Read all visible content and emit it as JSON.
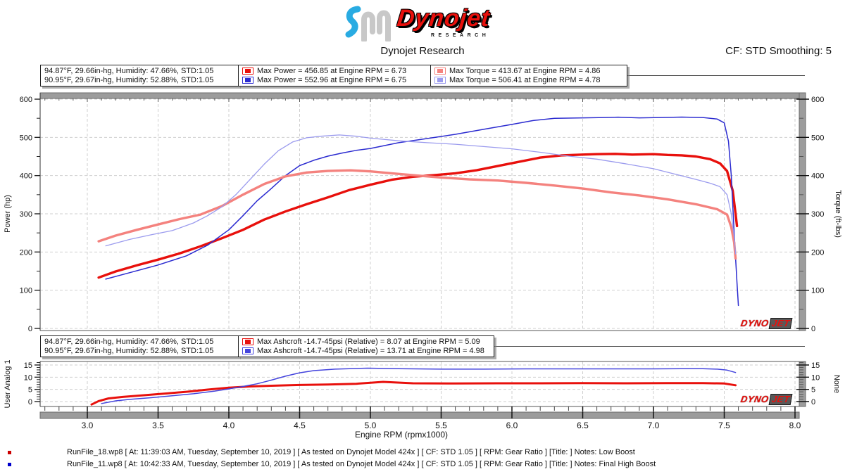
{
  "header": {
    "wordmark": "Dynojet",
    "research_label": "RESEARCH",
    "title": "Dynojet Research",
    "cf_label": "CF: STD Smoothing: 5"
  },
  "conditions": {
    "run1": "94.87°F, 29.66in-hg, Humidity: 47.66%, STD:1.05",
    "run2": "90.95°F, 29.67in-hg, Humidity: 52.88%, STD:1.05"
  },
  "legend_power_torque": {
    "power_run1": "Max Power = 456.85 at Engine RPM = 6.73",
    "power_run2": "Max Power = 552.96 at Engine RPM = 6.75",
    "torque_run1": "Max Torque = 413.67 at Engine RPM = 4.86",
    "torque_run2": "Max Torque = 506.41 at Engine RPM = 4.78"
  },
  "legend_boost": {
    "run1": "Max Ashcroft -14.7-45psi (Relative) = 8.07 at Engine RPM = 5.09",
    "run2": "Max Ashcroft -14.7-45psi (Relative) = 13.71 at Engine RPM = 4.98"
  },
  "watermark": {
    "part1": "DYNO",
    "part2": "JET"
  },
  "colors": {
    "accent": "#e8100c",
    "grid": "#cfcfcf",
    "band": "#9c9c9c",
    "band_edge": "#6b6b6b",
    "axis": "#333333"
  },
  "footer": {
    "runs": [
      {
        "color": "#cc0000",
        "text": "RunFile_18.wp8 [ At: 11:39:03 AM, Tuesday, September 10, 2019 ] [ As tested on Dynojet Model 424x ] [ CF: STD 1.05 ] [ RPM: Gear Ratio ] [Title: ]  Notes: Low Boost"
      },
      {
        "color": "#0000cc",
        "text": "RunFile_11.wp8 [ At: 10:42:33 AM, Tuesday, September 10, 2019 ] [ As tested on Dynojet Model 424x ] [ CF: STD 1.05 ] [ RPM: Gear Ratio ] [Title: ]  Notes: Final High Boost"
      }
    ]
  },
  "chart_data": [
    {
      "type": "line",
      "title": "Power and Torque vs Engine RPM",
      "xlabel": "Engine RPM (rpmx1000)",
      "ylabel_left": "Power (hp)",
      "ylabel_right": "Torque (ft-lbs)",
      "xlim": [
        2.66,
        8.04
      ],
      "ylim": [
        0,
        620
      ],
      "x_ticks": [
        3.0,
        3.5,
        4.0,
        4.5,
        5.0,
        5.5,
        6.0,
        6.5,
        7.0,
        7.5,
        8.0
      ],
      "y_ticks": [
        0,
        100,
        200,
        300,
        400,
        500,
        600
      ],
      "y_minor_step": 50,
      "x_minor_step": 0.1,
      "grid": "dashed",
      "legend_position": "top",
      "series": [
        {
          "name": "Power - RunFile_18 (Low Boost)",
          "unit": "hp",
          "color": "#e8100c",
          "width": 3.4,
          "points": [
            [
              3.08,
              133
            ],
            [
              3.2,
              149
            ],
            [
              3.35,
              165
            ],
            [
              3.5,
              180
            ],
            [
              3.65,
              196
            ],
            [
              3.8,
              215
            ],
            [
              3.95,
              236
            ],
            [
              4.1,
              258
            ],
            [
              4.25,
              285
            ],
            [
              4.4,
              306
            ],
            [
              4.55,
              325
            ],
            [
              4.7,
              343
            ],
            [
              4.85,
              362
            ],
            [
              5.0,
              376
            ],
            [
              5.15,
              389
            ],
            [
              5.3,
              397
            ],
            [
              5.45,
              401
            ],
            [
              5.6,
              406
            ],
            [
              5.75,
              414
            ],
            [
              5.9,
              425
            ],
            [
              6.05,
              436
            ],
            [
              6.2,
              447
            ],
            [
              6.35,
              453
            ],
            [
              6.5,
              455
            ],
            [
              6.6,
              456
            ],
            [
              6.73,
              456.85
            ],
            [
              6.85,
              455
            ],
            [
              7.0,
              456
            ],
            [
              7.1,
              454
            ],
            [
              7.2,
              453
            ],
            [
              7.3,
              450
            ],
            [
              7.4,
              443
            ],
            [
              7.47,
              432
            ],
            [
              7.52,
              412
            ],
            [
              7.56,
              360
            ],
            [
              7.58,
              300
            ],
            [
              7.59,
              268
            ]
          ]
        },
        {
          "name": "Power - RunFile_11 (Final High Boost)",
          "unit": "hp",
          "color": "#2b2bd0",
          "width": 1.5,
          "points": [
            [
              3.13,
              129
            ],
            [
              3.3,
              146
            ],
            [
              3.5,
              166
            ],
            [
              3.7,
              190
            ],
            [
              3.85,
              218
            ],
            [
              4.0,
              258
            ],
            [
              4.1,
              295
            ],
            [
              4.2,
              334
            ],
            [
              4.3,
              366
            ],
            [
              4.4,
              400
            ],
            [
              4.5,
              426
            ],
            [
              4.6,
              440
            ],
            [
              4.7,
              451
            ],
            [
              4.8,
              459
            ],
            [
              4.9,
              466
            ],
            [
              5.0,
              471
            ],
            [
              5.2,
              486
            ],
            [
              5.4,
              497
            ],
            [
              5.6,
              508
            ],
            [
              5.8,
              521
            ],
            [
              6.0,
              534
            ],
            [
              6.15,
              544
            ],
            [
              6.3,
              550
            ],
            [
              6.5,
              551
            ],
            [
              6.65,
              552
            ],
            [
              6.75,
              552.96
            ],
            [
              6.9,
              551
            ],
            [
              7.05,
              552
            ],
            [
              7.2,
              553
            ],
            [
              7.35,
              552
            ],
            [
              7.45,
              548
            ],
            [
              7.5,
              538
            ],
            [
              7.53,
              490
            ],
            [
              7.55,
              400
            ],
            [
              7.57,
              250
            ],
            [
              7.59,
              120
            ],
            [
              7.6,
              60
            ]
          ]
        },
        {
          "name": "Torque - RunFile_18 (Low Boost)",
          "unit": "ft-lbs",
          "color": "#f4827e",
          "width": 3.4,
          "points": [
            [
              3.08,
              228
            ],
            [
              3.2,
              243
            ],
            [
              3.35,
              258
            ],
            [
              3.5,
              272
            ],
            [
              3.65,
              286
            ],
            [
              3.8,
              298
            ],
            [
              3.95,
              320
            ],
            [
              4.1,
              350
            ],
            [
              4.25,
              378
            ],
            [
              4.4,
              398
            ],
            [
              4.55,
              408
            ],
            [
              4.7,
              412
            ],
            [
              4.86,
              413.67
            ],
            [
              5.0,
              411
            ],
            [
              5.15,
              406
            ],
            [
              5.3,
              401
            ],
            [
              5.5,
              395
            ],
            [
              5.7,
              390
            ],
            [
              5.9,
              387
            ],
            [
              6.1,
              381
            ],
            [
              6.3,
              374
            ],
            [
              6.5,
              366
            ],
            [
              6.7,
              356
            ],
            [
              6.9,
              348
            ],
            [
              7.1,
              338
            ],
            [
              7.3,
              325
            ],
            [
              7.45,
              312
            ],
            [
              7.52,
              298
            ],
            [
              7.55,
              265
            ],
            [
              7.57,
              225
            ],
            [
              7.58,
              183
            ]
          ]
        },
        {
          "name": "Torque - RunFile_11 (Final High Boost)",
          "unit": "ft-lbs",
          "color": "#9b9bee",
          "width": 1.3,
          "points": [
            [
              3.13,
              216
            ],
            [
              3.3,
              233
            ],
            [
              3.45,
              245
            ],
            [
              3.6,
              256
            ],
            [
              3.75,
              276
            ],
            [
              3.85,
              295
            ],
            [
              3.95,
              318
            ],
            [
              4.05,
              350
            ],
            [
              4.15,
              390
            ],
            [
              4.25,
              430
            ],
            [
              4.35,
              465
            ],
            [
              4.45,
              488
            ],
            [
              4.55,
              499
            ],
            [
              4.65,
              503
            ],
            [
              4.78,
              506.41
            ],
            [
              4.9,
              503
            ],
            [
              5.0,
              498
            ],
            [
              5.2,
              491
            ],
            [
              5.4,
              486
            ],
            [
              5.6,
              482
            ],
            [
              5.8,
              476
            ],
            [
              6.0,
              470
            ],
            [
              6.2,
              461
            ],
            [
              6.4,
              451
            ],
            [
              6.6,
              443
            ],
            [
              6.8,
              431
            ],
            [
              7.0,
              418
            ],
            [
              7.15,
              404
            ],
            [
              7.3,
              390
            ],
            [
              7.4,
              380
            ],
            [
              7.47,
              371
            ],
            [
              7.52,
              350
            ],
            [
              7.55,
              300
            ],
            [
              7.57,
              240
            ],
            [
              7.58,
              195
            ]
          ]
        }
      ]
    },
    {
      "type": "line",
      "title": "Boost (Ashcroft -14.7-45psi Relative) vs Engine RPM",
      "xlabel": "Engine RPM (rpmx1000)",
      "ylabel_left": "User Analog 1",
      "ylabel_right": "None",
      "xlim": [
        2.66,
        8.04
      ],
      "ylim": [
        -2.5,
        16.5
      ],
      "x_ticks": [
        3.0,
        3.5,
        4.0,
        4.5,
        5.0,
        5.5,
        6.0,
        6.5,
        7.0,
        7.5,
        8.0
      ],
      "y_ticks": [
        0,
        5,
        10,
        15
      ],
      "y_minor_step": 1,
      "x_minor_step": 0.1,
      "grid": "dashed",
      "series": [
        {
          "name": "Ashcroft psi - RunFile_18 (Low Boost)",
          "unit": "psi",
          "color": "#e8100c",
          "width": 3.0,
          "points": [
            [
              3.03,
              -1.2
            ],
            [
              3.08,
              0.2
            ],
            [
              3.15,
              1.3
            ],
            [
              3.25,
              1.9
            ],
            [
              3.4,
              2.6
            ],
            [
              3.55,
              3.3
            ],
            [
              3.7,
              4.0
            ],
            [
              3.85,
              4.9
            ],
            [
              4.0,
              5.7
            ],
            [
              4.15,
              6.2
            ],
            [
              4.3,
              6.5
            ],
            [
              4.5,
              6.8
            ],
            [
              4.7,
              7.0
            ],
            [
              4.9,
              7.3
            ],
            [
              5.09,
              8.07
            ],
            [
              5.3,
              7.5
            ],
            [
              5.6,
              7.4
            ],
            [
              5.9,
              7.5
            ],
            [
              6.2,
              7.5
            ],
            [
              6.5,
              7.6
            ],
            [
              6.8,
              7.5
            ],
            [
              7.1,
              7.6
            ],
            [
              7.35,
              7.6
            ],
            [
              7.5,
              7.4
            ],
            [
              7.58,
              6.7
            ]
          ]
        },
        {
          "name": "Ashcroft psi - RunFile_11 (Final High Boost)",
          "unit": "psi",
          "color": "#4444dd",
          "width": 1.5,
          "points": [
            [
              3.1,
              -0.8
            ],
            [
              3.2,
              0.3
            ],
            [
              3.3,
              0.9
            ],
            [
              3.45,
              1.6
            ],
            [
              3.6,
              2.4
            ],
            [
              3.75,
              3.2
            ],
            [
              3.9,
              4.3
            ],
            [
              4.0,
              5.2
            ],
            [
              4.1,
              6.2
            ],
            [
              4.2,
              7.3
            ],
            [
              4.3,
              8.8
            ],
            [
              4.4,
              10.4
            ],
            [
              4.5,
              11.8
            ],
            [
              4.6,
              12.7
            ],
            [
              4.75,
              13.3
            ],
            [
              4.98,
              13.71
            ],
            [
              5.2,
              13.5
            ],
            [
              5.5,
              13.3
            ],
            [
              5.8,
              13.3
            ],
            [
              6.1,
              13.4
            ],
            [
              6.4,
              13.4
            ],
            [
              6.7,
              13.4
            ],
            [
              7.0,
              13.4
            ],
            [
              7.2,
              13.5
            ],
            [
              7.35,
              13.5
            ],
            [
              7.45,
              13.3
            ],
            [
              7.52,
              12.9
            ],
            [
              7.58,
              11.9
            ]
          ]
        }
      ]
    }
  ]
}
